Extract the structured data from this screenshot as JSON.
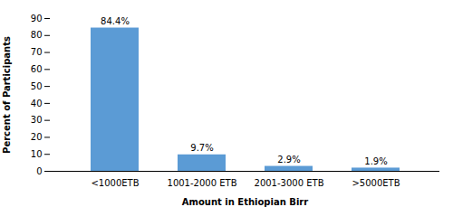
{
  "chart_data": {
    "type": "bar",
    "categories": [
      "<1000ETB",
      "1001-2000 ETB",
      "2001-3000 ETB",
      ">5000ETB"
    ],
    "values": [
      84.4,
      9.7,
      2.9,
      1.9
    ],
    "value_labels": [
      "84.4%",
      "9.7%",
      "2.9%",
      "1.9%"
    ],
    "data_labels": true,
    "color": "#5b9bd5",
    "xlabel": "Amount in Ethiopian Birr",
    "ylabel": "Percent of Participants",
    "ylim": [
      0,
      90
    ],
    "yticks": [
      0,
      10,
      20,
      30,
      40,
      50,
      60,
      70,
      80,
      90
    ],
    "grid": false
  }
}
